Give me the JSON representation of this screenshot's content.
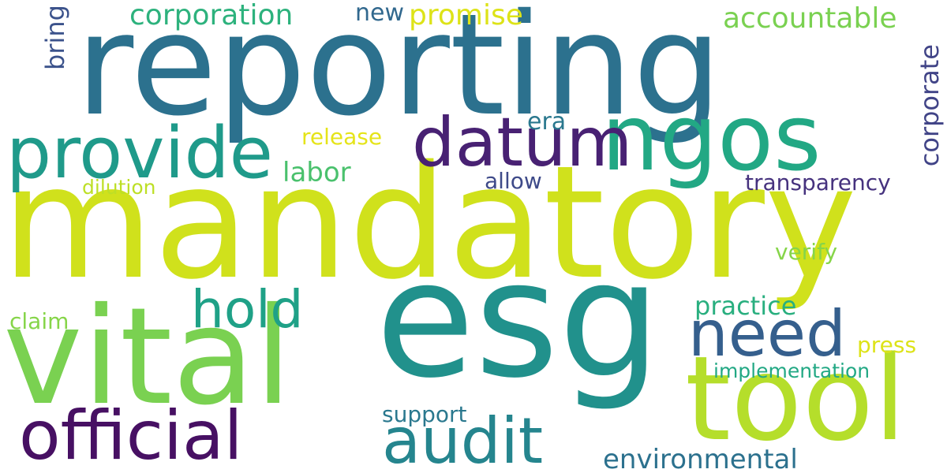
{
  "words": [
    {
      "text": "reporting",
      "color": "#2c718e"
    },
    {
      "text": "mandatory",
      "color": "#d0e11c"
    },
    {
      "text": "esg",
      "color": "#21918c"
    },
    {
      "text": "vital",
      "color": "#7ad151"
    },
    {
      "text": "ngos",
      "color": "#22a884"
    },
    {
      "text": "tool",
      "color": "#b5de2b"
    },
    {
      "text": "datum",
      "color": "#482173"
    },
    {
      "text": "provide",
      "color": "#1f9a8a"
    },
    {
      "text": "official",
      "color": "#471063"
    },
    {
      "text": "audit",
      "color": "#25858e"
    },
    {
      "text": "need",
      "color": "#355f8d"
    },
    {
      "text": "hold",
      "color": "#1fa187"
    },
    {
      "text": "corporation",
      "color": "#2db27d"
    },
    {
      "text": "promise",
      "color": "#dde318"
    },
    {
      "text": "accountable",
      "color": "#7ad151"
    },
    {
      "text": "new",
      "color": "#31688e"
    },
    {
      "text": "bring",
      "color": "#3b528b"
    },
    {
      "text": "corporate",
      "color": "#414487"
    },
    {
      "text": "era",
      "color": "#2a788e"
    },
    {
      "text": "release",
      "color": "#e5e419"
    },
    {
      "text": "labor",
      "color": "#4ac16d"
    },
    {
      "text": "allow",
      "color": "#3e4a89"
    },
    {
      "text": "transparency",
      "color": "#46327e"
    },
    {
      "text": "dilution",
      "color": "#bddf26"
    },
    {
      "text": "verify",
      "color": "#86d549"
    },
    {
      "text": "practice",
      "color": "#29af7f"
    },
    {
      "text": "claim",
      "color": "#86d549"
    },
    {
      "text": "press",
      "color": "#dde318"
    },
    {
      "text": "implementation",
      "color": "#22a884"
    },
    {
      "text": "support",
      "color": "#2a788e"
    },
    {
      "text": "environmental",
      "color": "#2c718e"
    }
  ]
}
